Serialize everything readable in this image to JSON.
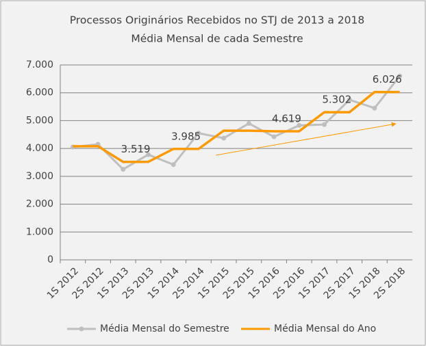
{
  "chart_data": {
    "type": "line",
    "title": "Processos Originários Recebidos no STJ de 2013 a 2018",
    "subtitle": "Média Mensal de cada Semestre",
    "categories": [
      "1S 2012",
      "2S 2012",
      "1S 2013",
      "2S 2013",
      "1S 2014",
      "2S 2014",
      "1S 2015",
      "2S 2015",
      "1S 2016",
      "2S 2016",
      "1S 2017",
      "2S 2017",
      "1S 2018",
      "2S 2018"
    ],
    "series": [
      {
        "name": "Média Mensal do Semestre",
        "color": "#bfbfbf",
        "marker": true,
        "values": [
          4050,
          4150,
          3250,
          3780,
          3420,
          4550,
          4370,
          4900,
          4420,
          4830,
          4860,
          5750,
          5450,
          6600
        ]
      },
      {
        "name": "Média Mensal do Ano",
        "color": "#ff9900",
        "marker": false,
        "values": [
          4080,
          4080,
          3519,
          3519,
          3985,
          3985,
          4640,
          4640,
          4619,
          4619,
          5302,
          5302,
          6026,
          6026
        ],
        "value_labels": [
          null,
          null,
          null,
          "3.519",
          null,
          "3.985",
          null,
          null,
          null,
          "4.619",
          null,
          "5.302",
          null,
          "6.026"
        ]
      }
    ],
    "ylim": [
      0,
      7000
    ],
    "yticks": [
      0,
      {
        "value": 1000,
        "label": "1.000"
      },
      {
        "value": 2000,
        "label": "2.000"
      },
      {
        "value": 3000,
        "label": "3.000"
      },
      {
        "value": 4000,
        "label": "4.000"
      },
      {
        "value": 5000,
        "label": "5.000"
      },
      {
        "value": 6000,
        "label": "6.000"
      },
      {
        "value": 7000,
        "label": "7.000"
      }
    ],
    "grid": true,
    "legend": "bottom"
  }
}
